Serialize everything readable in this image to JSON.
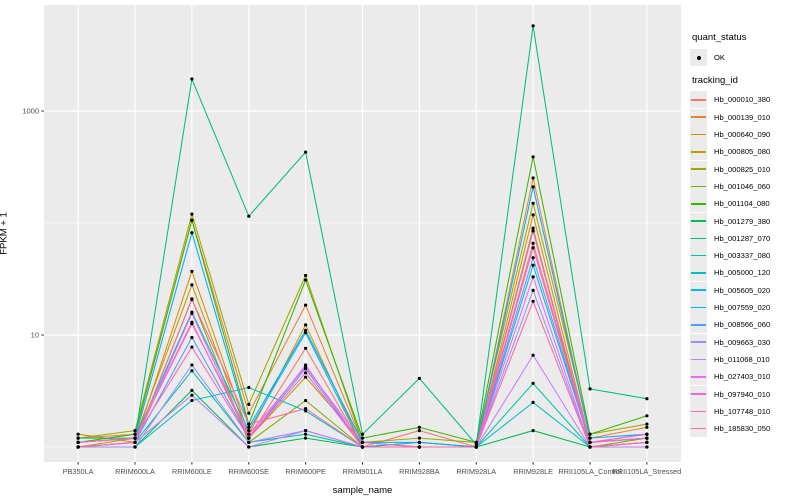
{
  "axes": {
    "xlabel": "sample_name",
    "ylabel": "FPKM + 1"
  },
  "legend": {
    "quant_status": {
      "title": "quant_status",
      "ok_label": "OK"
    },
    "tracking_id": {
      "title": "tracking_id"
    }
  },
  "colors": {
    "panel_bg": "#EBEBEB",
    "grid": "#FFFFFF",
    "tick_text": "#4D4D4D",
    "point": "#000000"
  },
  "chart_data": {
    "type": "line",
    "x_categories": [
      "PB350LA",
      "RRIM600LA",
      "RRIM600LE",
      "RRIM600SE",
      "RRIM600PE",
      "RRIM901LA",
      "RRIM928BA",
      "RRIM928LA",
      "RRIM928LE",
      "RRII105LA_Control",
      "RRII105LA_Stressed"
    ],
    "xlabel": "sample_name",
    "ylabel": "FPKM + 1",
    "y_scale": "log10",
    "y_ticks": [
      {
        "label": "10",
        "value": 10
      },
      {
        "label": "1000",
        "value": 1000
      }
    ],
    "y_minor": [
      1,
      100
    ],
    "ylim_log": [
      -0.13,
      3.95
    ],
    "legend_position": "right",
    "grid": true,
    "series": [
      {
        "name": "Hb_000010_380",
        "color": "#F8766D",
        "values": [
          1.1,
          1.2,
          13,
          1.2,
          7.6,
          1.0,
          1.4,
          1.0,
          66,
          1.1,
          1.3
        ]
      },
      {
        "name": "Hb_000139_010",
        "color": "#EA8331",
        "values": [
          1.2,
          1.3,
          106,
          2.0,
          18.5,
          1.1,
          1.0,
          1.0,
          252,
          1.2,
          1.5
        ]
      },
      {
        "name": "Hb_000640_090",
        "color": "#D89000",
        "values": [
          1.3,
          1.1,
          37,
          1.3,
          12.3,
          1.0,
          1.1,
          1.0,
          118,
          1.1,
          1.2
        ]
      },
      {
        "name": "Hb_000805_080",
        "color": "#C09B00",
        "values": [
          1.0,
          1.2,
          28,
          1.2,
          4.2,
          1.1,
          1.0,
          1.0,
          90,
          1.0,
          1.1
        ]
      },
      {
        "name": "Hb_000825_010",
        "color": "#A3A500",
        "values": [
          1.2,
          1.4,
          120,
          2.4,
          34,
          1.1,
          1.2,
          1.1,
          150,
          1.3,
          1.6
        ]
      },
      {
        "name": "Hb_001046_060",
        "color": "#7CAE00",
        "values": [
          1.0,
          1.1,
          21,
          1.1,
          2.6,
          1.0,
          1.0,
          1.0,
          85,
          1.0,
          1.2
        ]
      },
      {
        "name": "Hb_001104_080",
        "color": "#39B600",
        "values": [
          1.1,
          1.3,
          106,
          1.6,
          31,
          1.2,
          1.5,
          1.1,
          390,
          1.3,
          1.9
        ]
      },
      {
        "name": "Hb_001279_380",
        "color": "#00BB4E",
        "values": [
          1.0,
          1.0,
          3.2,
          1.0,
          1.2,
          1.0,
          1.0,
          1.0,
          1.4,
          1.0,
          1.1
        ]
      },
      {
        "name": "Hb_001287_070",
        "color": "#00BF7D",
        "values": [
          1.2,
          1.2,
          1930,
          115,
          430,
          1.3,
          4.1,
          1.05,
          5750,
          3.3,
          2.7
        ]
      },
      {
        "name": "Hb_003337_080",
        "color": "#00C1A7",
        "values": [
          1.0,
          1.1,
          4.8,
          1.1,
          1.3,
          1.0,
          1.0,
          1.0,
          3.7,
          1.0,
          1.0
        ]
      },
      {
        "name": "Hb_005000_120",
        "color": "#00BFC4",
        "values": [
          1.0,
          1.0,
          2.6,
          3.4,
          2.1,
          1.0,
          1.0,
          1.0,
          2.5,
          1.0,
          1.1
        ]
      },
      {
        "name": "Hb_005605_020",
        "color": "#00B8E5",
        "values": [
          1.1,
          1.2,
          16,
          1.4,
          10.5,
          1.0,
          1.1,
          1.0,
          42,
          1.1,
          1.2
        ]
      },
      {
        "name": "Hb_007559_020",
        "color": "#00ACFC",
        "values": [
          1.1,
          1.2,
          82,
          1.5,
          11,
          1.1,
          1.1,
          1.0,
          210,
          1.2,
          1.3
        ]
      },
      {
        "name": "Hb_008566_060",
        "color": "#519CFF",
        "values": [
          1.0,
          1.1,
          9.5,
          1.2,
          5.0,
          1.0,
          1.0,
          1.0,
          49,
          1.1,
          1.2
        ]
      },
      {
        "name": "Hb_009663_030",
        "color": "#9590FF",
        "values": [
          1.0,
          1.0,
          5.4,
          1.1,
          1.4,
          1.0,
          1.0,
          1.0,
          25,
          1.0,
          1.1
        ]
      },
      {
        "name": "Hb_011068_010",
        "color": "#C57CFF",
        "values": [
          1.0,
          1.1,
          2.9,
          1.0,
          1.4,
          1.0,
          1.0,
          1.0,
          6.6,
          1.0,
          1.0
        ]
      },
      {
        "name": "Hb_027403_010",
        "color": "#E76BF3",
        "values": [
          1.0,
          1.1,
          15.6,
          1.2,
          5.4,
          1.0,
          1.0,
          1.0,
          33,
          1.0,
          1.1
        ]
      },
      {
        "name": "Hb_097940_010",
        "color": "#FA61DB",
        "values": [
          1.1,
          1.2,
          12.6,
          1.3,
          5.2,
          1.1,
          1.0,
          1.0,
          85,
          1.1,
          1.2
        ]
      },
      {
        "name": "Hb_107748_010",
        "color": "#FF61BF",
        "values": [
          1.1,
          1.2,
          7.8,
          1.2,
          4.6,
          1.0,
          1.0,
          1.0,
          60,
          1.1,
          1.3
        ]
      },
      {
        "name": "Hb_185830_050",
        "color": "#FF689E",
        "values": [
          1.0,
          1.1,
          20.7,
          1.6,
          2.2,
          1.0,
          1.0,
          1.0,
          20,
          1.0,
          1.1
        ]
      }
    ]
  }
}
